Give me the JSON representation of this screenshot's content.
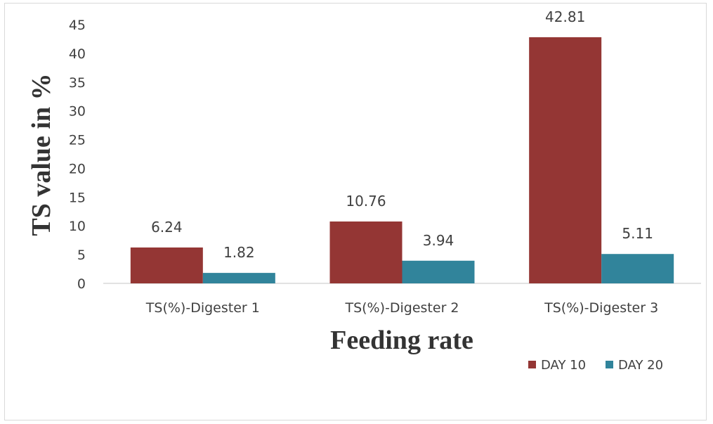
{
  "chart_data": {
    "type": "bar",
    "title": "",
    "xlabel": "Feeding rate",
    "ylabel": "TS value in %",
    "categories": [
      "TS(%)-Digester 1",
      "TS(%)-Digester 2",
      "TS(%)-Digester 3"
    ],
    "series": [
      {
        "name": "DAY 10",
        "values": [
          6.24,
          10.76,
          42.81
        ],
        "value_labels": [
          "6.24",
          "10.76",
          "42.81"
        ],
        "color": "#943634"
      },
      {
        "name": "DAY 20",
        "values": [
          1.82,
          3.94,
          5.11
        ],
        "value_labels": [
          "1.82",
          "3.94",
          "5.11"
        ],
        "color": "#31849B"
      }
    ],
    "ylim": [
      0,
      45
    ],
    "yticks": [
      0,
      5,
      10,
      15,
      20,
      25,
      30,
      35,
      40,
      45
    ],
    "grid": false,
    "legend_position": "bottom-right"
  }
}
